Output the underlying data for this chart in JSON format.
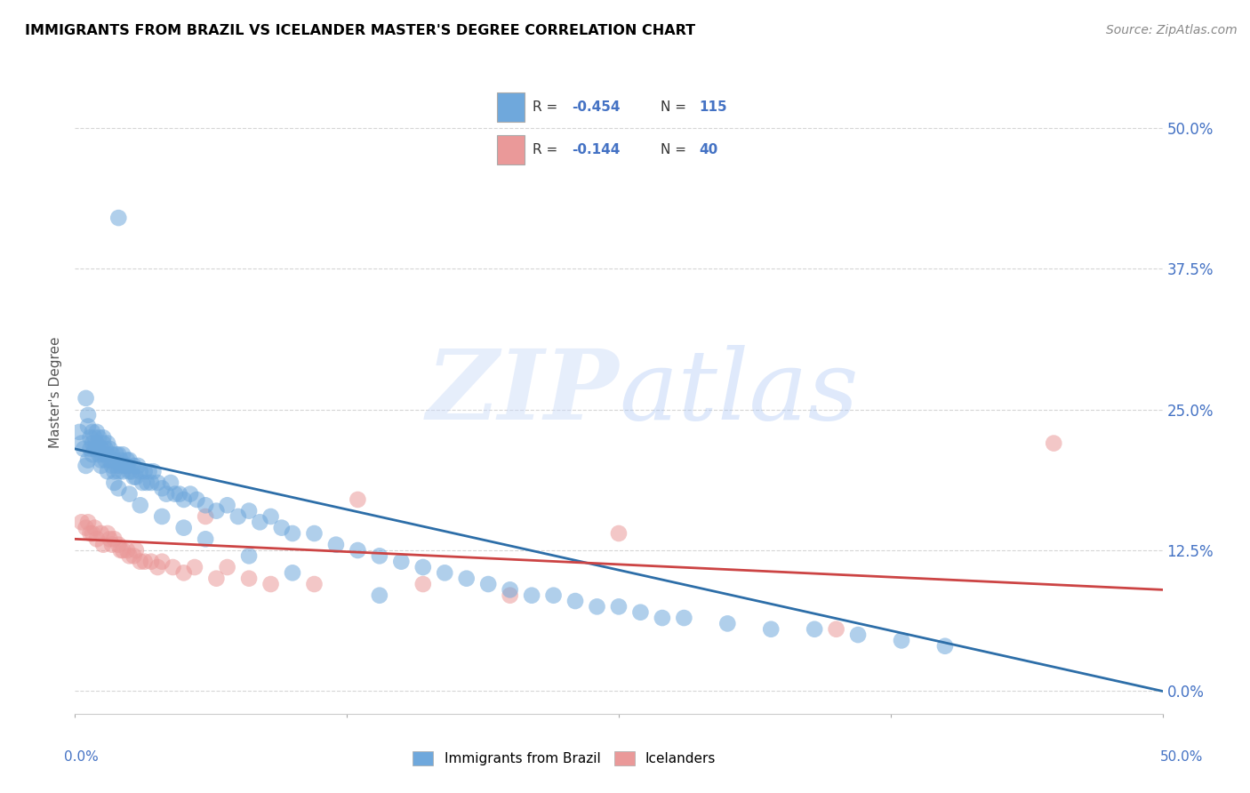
{
  "title": "IMMIGRANTS FROM BRAZIL VS ICELANDER MASTER'S DEGREE CORRELATION CHART",
  "source": "Source: ZipAtlas.com",
  "ylabel": "Master's Degree",
  "ytick_values": [
    0.0,
    0.125,
    0.25,
    0.375,
    0.5
  ],
  "xrange": [
    0.0,
    0.5
  ],
  "yrange": [
    -0.02,
    0.55
  ],
  "brazil_R": -0.454,
  "brazil_N": 115,
  "iceland_R": -0.144,
  "iceland_N": 40,
  "brazil_color": "#6fa8dc",
  "iceland_color": "#ea9999",
  "brazil_line_color": "#2d6ea8",
  "iceland_line_color": "#cc4444",
  "legend_label_brazil": "Immigrants from Brazil",
  "legend_label_iceland": "Icelanders",
  "background_color": "#ffffff",
  "grid_color": "#cccccc",
  "title_color": "#000000",
  "axis_label_color": "#4472c4",
  "brazil_scatter_x": [
    0.002,
    0.003,
    0.004,
    0.005,
    0.005,
    0.006,
    0.006,
    0.007,
    0.007,
    0.008,
    0.008,
    0.009,
    0.009,
    0.01,
    0.01,
    0.01,
    0.011,
    0.011,
    0.012,
    0.012,
    0.013,
    0.013,
    0.013,
    0.014,
    0.014,
    0.015,
    0.015,
    0.016,
    0.016,
    0.017,
    0.017,
    0.018,
    0.018,
    0.019,
    0.019,
    0.02,
    0.02,
    0.021,
    0.021,
    0.022,
    0.022,
    0.023,
    0.024,
    0.024,
    0.025,
    0.025,
    0.026,
    0.027,
    0.027,
    0.028,
    0.029,
    0.03,
    0.031,
    0.032,
    0.033,
    0.034,
    0.035,
    0.036,
    0.038,
    0.04,
    0.042,
    0.044,
    0.046,
    0.048,
    0.05,
    0.053,
    0.056,
    0.06,
    0.065,
    0.07,
    0.075,
    0.08,
    0.085,
    0.09,
    0.095,
    0.1,
    0.11,
    0.12,
    0.13,
    0.14,
    0.15,
    0.16,
    0.17,
    0.18,
    0.19,
    0.2,
    0.21,
    0.22,
    0.23,
    0.24,
    0.25,
    0.26,
    0.27,
    0.28,
    0.3,
    0.32,
    0.34,
    0.36,
    0.38,
    0.4,
    0.006,
    0.008,
    0.01,
    0.012,
    0.015,
    0.018,
    0.02,
    0.025,
    0.03,
    0.04,
    0.05,
    0.06,
    0.08,
    0.1,
    0.14,
    0.02
  ],
  "brazil_scatter_y": [
    0.23,
    0.22,
    0.215,
    0.26,
    0.2,
    0.235,
    0.205,
    0.215,
    0.225,
    0.22,
    0.21,
    0.225,
    0.215,
    0.23,
    0.22,
    0.215,
    0.21,
    0.225,
    0.215,
    0.205,
    0.22,
    0.21,
    0.225,
    0.215,
    0.205,
    0.21,
    0.22,
    0.205,
    0.215,
    0.21,
    0.2,
    0.205,
    0.195,
    0.21,
    0.2,
    0.21,
    0.195,
    0.2,
    0.205,
    0.195,
    0.21,
    0.2,
    0.2,
    0.205,
    0.195,
    0.205,
    0.195,
    0.19,
    0.2,
    0.19,
    0.2,
    0.195,
    0.185,
    0.195,
    0.185,
    0.195,
    0.185,
    0.195,
    0.185,
    0.18,
    0.175,
    0.185,
    0.175,
    0.175,
    0.17,
    0.175,
    0.17,
    0.165,
    0.16,
    0.165,
    0.155,
    0.16,
    0.15,
    0.155,
    0.145,
    0.14,
    0.14,
    0.13,
    0.125,
    0.12,
    0.115,
    0.11,
    0.105,
    0.1,
    0.095,
    0.09,
    0.085,
    0.085,
    0.08,
    0.075,
    0.075,
    0.07,
    0.065,
    0.065,
    0.06,
    0.055,
    0.055,
    0.05,
    0.045,
    0.04,
    0.245,
    0.23,
    0.215,
    0.2,
    0.195,
    0.185,
    0.18,
    0.175,
    0.165,
    0.155,
    0.145,
    0.135,
    0.12,
    0.105,
    0.085,
    0.42
  ],
  "iceland_scatter_x": [
    0.003,
    0.005,
    0.006,
    0.007,
    0.008,
    0.009,
    0.01,
    0.012,
    0.013,
    0.015,
    0.016,
    0.017,
    0.018,
    0.02,
    0.021,
    0.022,
    0.024,
    0.025,
    0.027,
    0.028,
    0.03,
    0.032,
    0.035,
    0.038,
    0.04,
    0.045,
    0.05,
    0.055,
    0.06,
    0.065,
    0.07,
    0.08,
    0.09,
    0.11,
    0.13,
    0.16,
    0.2,
    0.25,
    0.35,
    0.45
  ],
  "iceland_scatter_y": [
    0.15,
    0.145,
    0.15,
    0.14,
    0.14,
    0.145,
    0.135,
    0.14,
    0.13,
    0.14,
    0.135,
    0.13,
    0.135,
    0.13,
    0.125,
    0.125,
    0.125,
    0.12,
    0.12,
    0.125,
    0.115,
    0.115,
    0.115,
    0.11,
    0.115,
    0.11,
    0.105,
    0.11,
    0.155,
    0.1,
    0.11,
    0.1,
    0.095,
    0.095,
    0.17,
    0.095,
    0.085,
    0.14,
    0.055,
    0.22
  ]
}
